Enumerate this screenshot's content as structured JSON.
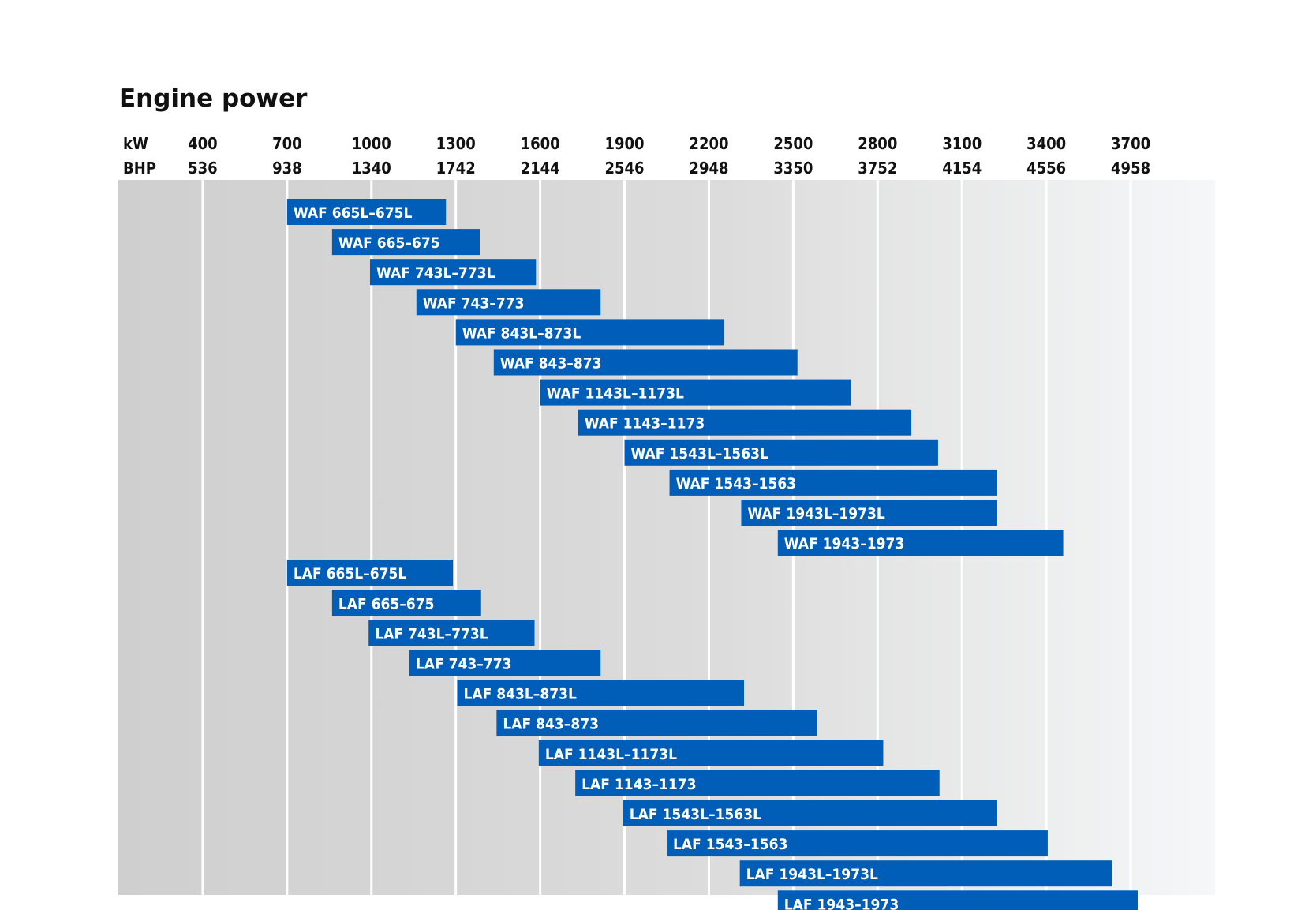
{
  "chart_data": {
    "type": "bar",
    "orientation": "horizontal-range",
    "title": "Engine power",
    "axis_rows": [
      {
        "label": "kW",
        "ticks": [
          "400",
          "700",
          "1000",
          "1300",
          "1600",
          "1900",
          "2200",
          "2500",
          "2800",
          "3100",
          "3400",
          "3700"
        ]
      },
      {
        "label": "BHP",
        "ticks": [
          "536",
          "938",
          "1340",
          "1742",
          "2144",
          "2546",
          "2948",
          "3350",
          "3752",
          "4154",
          "4556",
          "4958"
        ]
      }
    ],
    "xlim_kw": [
      100,
      4000
    ],
    "grid": true,
    "bar_color": "#005eb8",
    "series": [
      {
        "name": "WAF 665L–675L",
        "kw_min": 700,
        "kw_max": 1265
      },
      {
        "name": "WAF 665–675",
        "kw_min": 860,
        "kw_max": 1385
      },
      {
        "name": "WAF 743L–773L",
        "kw_min": 995,
        "kw_max": 1585
      },
      {
        "name": "WAF 743–773",
        "kw_min": 1160,
        "kw_max": 1815
      },
      {
        "name": "WAF 843L–873L",
        "kw_min": 1300,
        "kw_max": 2255
      },
      {
        "name": "WAF 843–873",
        "kw_min": 1435,
        "kw_max": 2515
      },
      {
        "name": "WAF 1143L–1173L",
        "kw_min": 1600,
        "kw_max": 2705
      },
      {
        "name": "WAF 1143–1173",
        "kw_min": 1735,
        "kw_max": 2920
      },
      {
        "name": "WAF 1543L–1563L",
        "kw_min": 1900,
        "kw_max": 3015
      },
      {
        "name": "WAF 1543–1563",
        "kw_min": 2060,
        "kw_max": 3225
      },
      {
        "name": "WAF 1943L–1973L",
        "kw_min": 2315,
        "kw_max": 3225
      },
      {
        "name": "WAF 1943–1973",
        "kw_min": 2445,
        "kw_max": 3460
      },
      {
        "name": "LAF 665L–675L",
        "kw_min": 700,
        "kw_max": 1290
      },
      {
        "name": "LAF 665–675",
        "kw_min": 860,
        "kw_max": 1390
      },
      {
        "name": "LAF 743L–773L",
        "kw_min": 990,
        "kw_max": 1580
      },
      {
        "name": "LAF 743–773",
        "kw_min": 1135,
        "kw_max": 1815
      },
      {
        "name": "LAF 843L–873L",
        "kw_min": 1305,
        "kw_max": 2325
      },
      {
        "name": "LAF 843–873",
        "kw_min": 1445,
        "kw_max": 2585
      },
      {
        "name": "LAF 1143L–1173L",
        "kw_min": 1595,
        "kw_max": 2820
      },
      {
        "name": "LAF 1143–1173",
        "kw_min": 1725,
        "kw_max": 3020
      },
      {
        "name": "LAF 1543L–1563L",
        "kw_min": 1895,
        "kw_max": 3225
      },
      {
        "name": "LAF 1543–1563",
        "kw_min": 2050,
        "kw_max": 3405
      },
      {
        "name": "LAF 1943L–1973L",
        "kw_min": 2310,
        "kw_max": 3635
      },
      {
        "name": "LAF 1943–1973",
        "kw_min": 2445,
        "kw_max": 3725
      }
    ]
  }
}
